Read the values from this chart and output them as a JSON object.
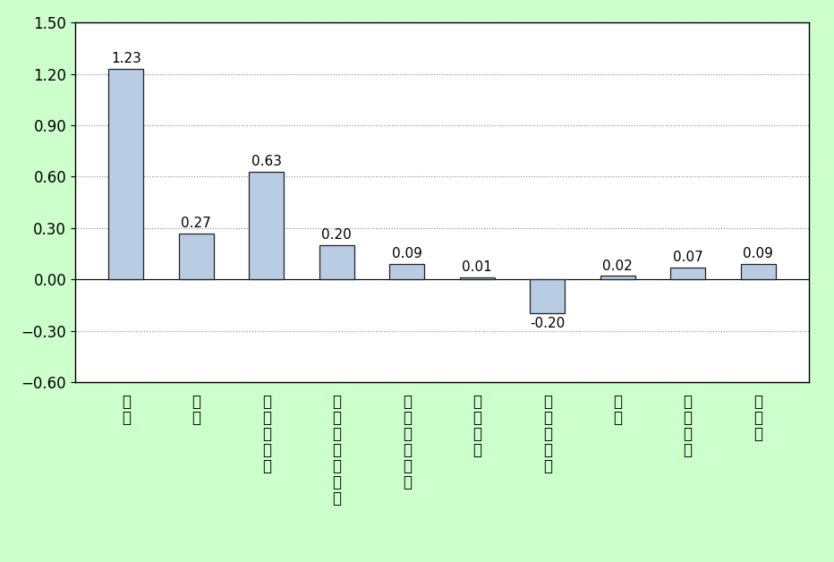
{
  "values": [
    1.23,
    0.27,
    0.63,
    0.2,
    0.09,
    0.01,
    -0.2,
    0.02,
    0.07,
    0.09
  ],
  "bar_color": "#b8cce4",
  "bar_edge_color": "#222222",
  "background_color": "#ccffcc",
  "plot_bg_color": "#ffffff",
  "ylim": [
    -0.6,
    1.5
  ],
  "yticks": [
    -0.6,
    -0.3,
    0.0,
    0.3,
    0.6,
    0.9,
    1.2,
    1.5
  ],
  "ytick_labels": [
    "-0.60",
    "-0.30",
    "0.00",
    "0.30",
    "0.60",
    "0.90",
    "1.20",
    "1.50"
  ],
  "grid_color": "#888888",
  "bar_width": 0.5,
  "value_labels": [
    "1.23",
    "0.27",
    "0.63",
    "0.20",
    "0.09",
    "0.01",
    "-0.20",
    "0.02",
    "0.07",
    "0.09"
  ],
  "label_fontsize": 11,
  "tick_fontsize": 12,
  "cat_labels": [
    "食\n料",
    "住\n居",
    "光\n熱\n･\n水\n道",
    "家\n具\n･\n家\n事\n用\n品",
    "被\n服\n及\nび\n履\n物",
    "保\n健\n医\n療",
    "交\n通\n･\n通\n信",
    "教\n育",
    "教\n養\n娯\n楽",
    "諸\n雑\n費"
  ]
}
